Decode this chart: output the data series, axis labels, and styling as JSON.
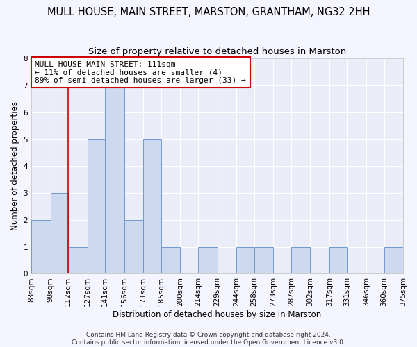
{
  "title": "MULL HOUSE, MAIN STREET, MARSTON, GRANTHAM, NG32 2HH",
  "subtitle": "Size of property relative to detached houses in Marston",
  "xlabel": "Distribution of detached houses by size in Marston",
  "ylabel": "Number of detached properties",
  "footer_line1": "Contains HM Land Registry data © Crown copyright and database right 2024.",
  "footer_line2": "Contains public sector information licensed under the Open Government Licence v3.0.",
  "annotation_line1": "MULL HOUSE MAIN STREET: 111sqm",
  "annotation_line2": "← 11% of detached houses are smaller (4)",
  "annotation_line3": "89% of semi-detached houses are larger (33) →",
  "bar_edges": [
    83,
    98,
    112,
    127,
    141,
    156,
    171,
    185,
    200,
    214,
    229,
    244,
    258,
    273,
    287,
    302,
    317,
    331,
    346,
    360,
    375
  ],
  "bar_heights": [
    2,
    3,
    1,
    5,
    7,
    2,
    5,
    1,
    0,
    1,
    0,
    1,
    1,
    0,
    1,
    0,
    1,
    0,
    0,
    1
  ],
  "bar_color": "#ccd9ef",
  "bar_edge_color": "#7099cc",
  "reference_line_x": 112,
  "reference_line_color": "#cc0000",
  "ylim": [
    0,
    8
  ],
  "yticks": [
    0,
    1,
    2,
    3,
    4,
    5,
    6,
    7,
    8
  ],
  "background_color": "#f5f5ff",
  "plot_bg_color": "#eaecf8",
  "grid_color": "#ffffff",
  "title_fontsize": 10.5,
  "subtitle_fontsize": 9.5,
  "axis_label_fontsize": 8.5,
  "tick_fontsize": 7.5,
  "annotation_fontsize": 8,
  "footer_fontsize": 6.5
}
